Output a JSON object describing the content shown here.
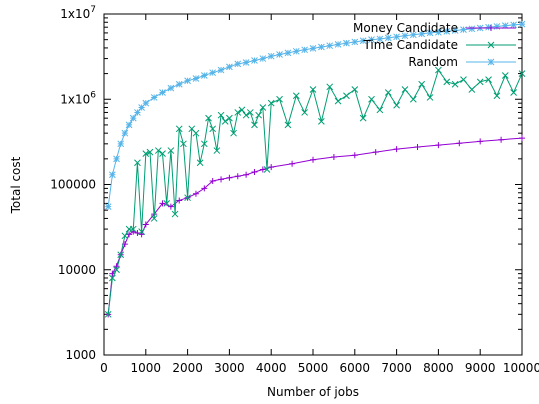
{
  "chart_data": {
    "type": "line",
    "title": "",
    "xlabel": "Number of jobs",
    "ylabel": "Total cost",
    "xlim": [
      0,
      10000
    ],
    "ylim": [
      1000,
      10000000
    ],
    "y_scale": "log",
    "grid": false,
    "legend_position": "top-right",
    "x_ticks": [
      0,
      1000,
      2000,
      3000,
      4000,
      5000,
      6000,
      7000,
      8000,
      9000,
      10000
    ],
    "x_tick_labels": [
      "0",
      "1000",
      "2000",
      "3000",
      "4000",
      "5000",
      "6000",
      "7000",
      "8000",
      "9000",
      "10000"
    ],
    "y_ticks": [
      1000,
      10000,
      100000,
      1000000,
      10000000
    ],
    "y_tick_labels": [
      "1000",
      "10000",
      "100000",
      "1x10",
      "1x10"
    ],
    "y_tick_exponents": [
      "",
      "",
      "",
      "6",
      "7"
    ],
    "series": [
      {
        "name": "Money Candidate",
        "color": "#9400d3",
        "marker": "plus",
        "x": [
          100,
          200,
          300,
          400,
          500,
          600,
          700,
          800,
          900,
          1000,
          1200,
          1400,
          1600,
          1800,
          2000,
          2200,
          2400,
          2600,
          2800,
          3000,
          3200,
          3400,
          3600,
          3800,
          4000,
          4500,
          5000,
          5500,
          6000,
          6500,
          7000,
          7500,
          8000,
          8500,
          9000,
          9500,
          10000
        ],
        "y": [
          3000,
          9000,
          11000,
          15000,
          20000,
          26000,
          28000,
          27000,
          26000,
          34000,
          45000,
          60000,
          55000,
          65000,
          70000,
          78000,
          90000,
          110000,
          115000,
          120000,
          125000,
          130000,
          140000,
          150000,
          160000,
          175000,
          195000,
          210000,
          220000,
          240000,
          260000,
          275000,
          290000,
          305000,
          320000,
          335000,
          350000
        ]
      },
      {
        "name": "Time Candidate",
        "color": "#009e73",
        "marker": "x",
        "x": [
          100,
          200,
          300,
          400,
          500,
          600,
          700,
          800,
          900,
          1000,
          1100,
          1200,
          1300,
          1400,
          1500,
          1600,
          1700,
          1800,
          1900,
          2000,
          2100,
          2200,
          2300,
          2400,
          2500,
          2600,
          2700,
          2800,
          2900,
          3000,
          3100,
          3200,
          3300,
          3400,
          3500,
          3600,
          3700,
          3800,
          3900,
          4000,
          4200,
          4400,
          4600,
          4800,
          5000,
          5200,
          5400,
          5600,
          5800,
          6000,
          6200,
          6400,
          6600,
          6800,
          7000,
          7200,
          7400,
          7600,
          7800,
          8000,
          8200,
          8400,
          8600,
          8800,
          9000,
          9200,
          9400,
          9600,
          9800,
          10000
        ],
        "y": [
          3000,
          8000,
          10000,
          15000,
          25000,
          30000,
          30000,
          180000,
          28000,
          230000,
          240000,
          40000,
          250000,
          230000,
          60000,
          250000,
          45000,
          450000,
          300000,
          70000,
          450000,
          400000,
          180000,
          300000,
          600000,
          450000,
          250000,
          650000,
          550000,
          600000,
          400000,
          700000,
          750000,
          650000,
          700000,
          500000,
          650000,
          800000,
          150000,
          900000,
          1000000,
          500000,
          1100000,
          700000,
          1300000,
          550000,
          1400000,
          950000,
          1100000,
          1300000,
          600000,
          1000000,
          750000,
          1200000,
          850000,
          1300000,
          1000000,
          1500000,
          1050000,
          2200000,
          1600000,
          1500000,
          1700000,
          1300000,
          1600000,
          1700000,
          1100000,
          1900000,
          1200000,
          2000000
        ]
      },
      {
        "name": "Random",
        "color": "#56b4e9",
        "marker": "star",
        "x": [
          100,
          200,
          300,
          400,
          500,
          600,
          700,
          800,
          900,
          1000,
          1200,
          1400,
          1600,
          1800,
          2000,
          2200,
          2400,
          2600,
          2800,
          3000,
          3200,
          3400,
          3600,
          3800,
          4000,
          4200,
          4400,
          4600,
          4800,
          5000,
          5200,
          5400,
          5600,
          5800,
          6000,
          6200,
          6400,
          6600,
          6800,
          7000,
          7200,
          7400,
          7600,
          7800,
          8000,
          8200,
          8400,
          8600,
          8800,
          9000,
          9200,
          9400,
          9600,
          9800,
          10000
        ],
        "y": [
          55000,
          130000,
          200000,
          300000,
          400000,
          500000,
          600000,
          700000,
          800000,
          900000,
          1050000,
          1200000,
          1350000,
          1500000,
          1650000,
          1750000,
          1900000,
          2050000,
          2200000,
          2400000,
          2600000,
          2700000,
          2850000,
          3000000,
          3200000,
          3350000,
          3500000,
          3650000,
          3800000,
          3950000,
          4100000,
          4250000,
          4400000,
          4550000,
          4700000,
          4850000,
          5000000,
          5100000,
          5250000,
          5400000,
          5550000,
          5700000,
          5850000,
          6000000,
          6100000,
          6250000,
          6400000,
          6550000,
          6700000,
          6850000,
          7000000,
          7150000,
          7300000,
          7450000,
          7600000
        ]
      }
    ]
  }
}
